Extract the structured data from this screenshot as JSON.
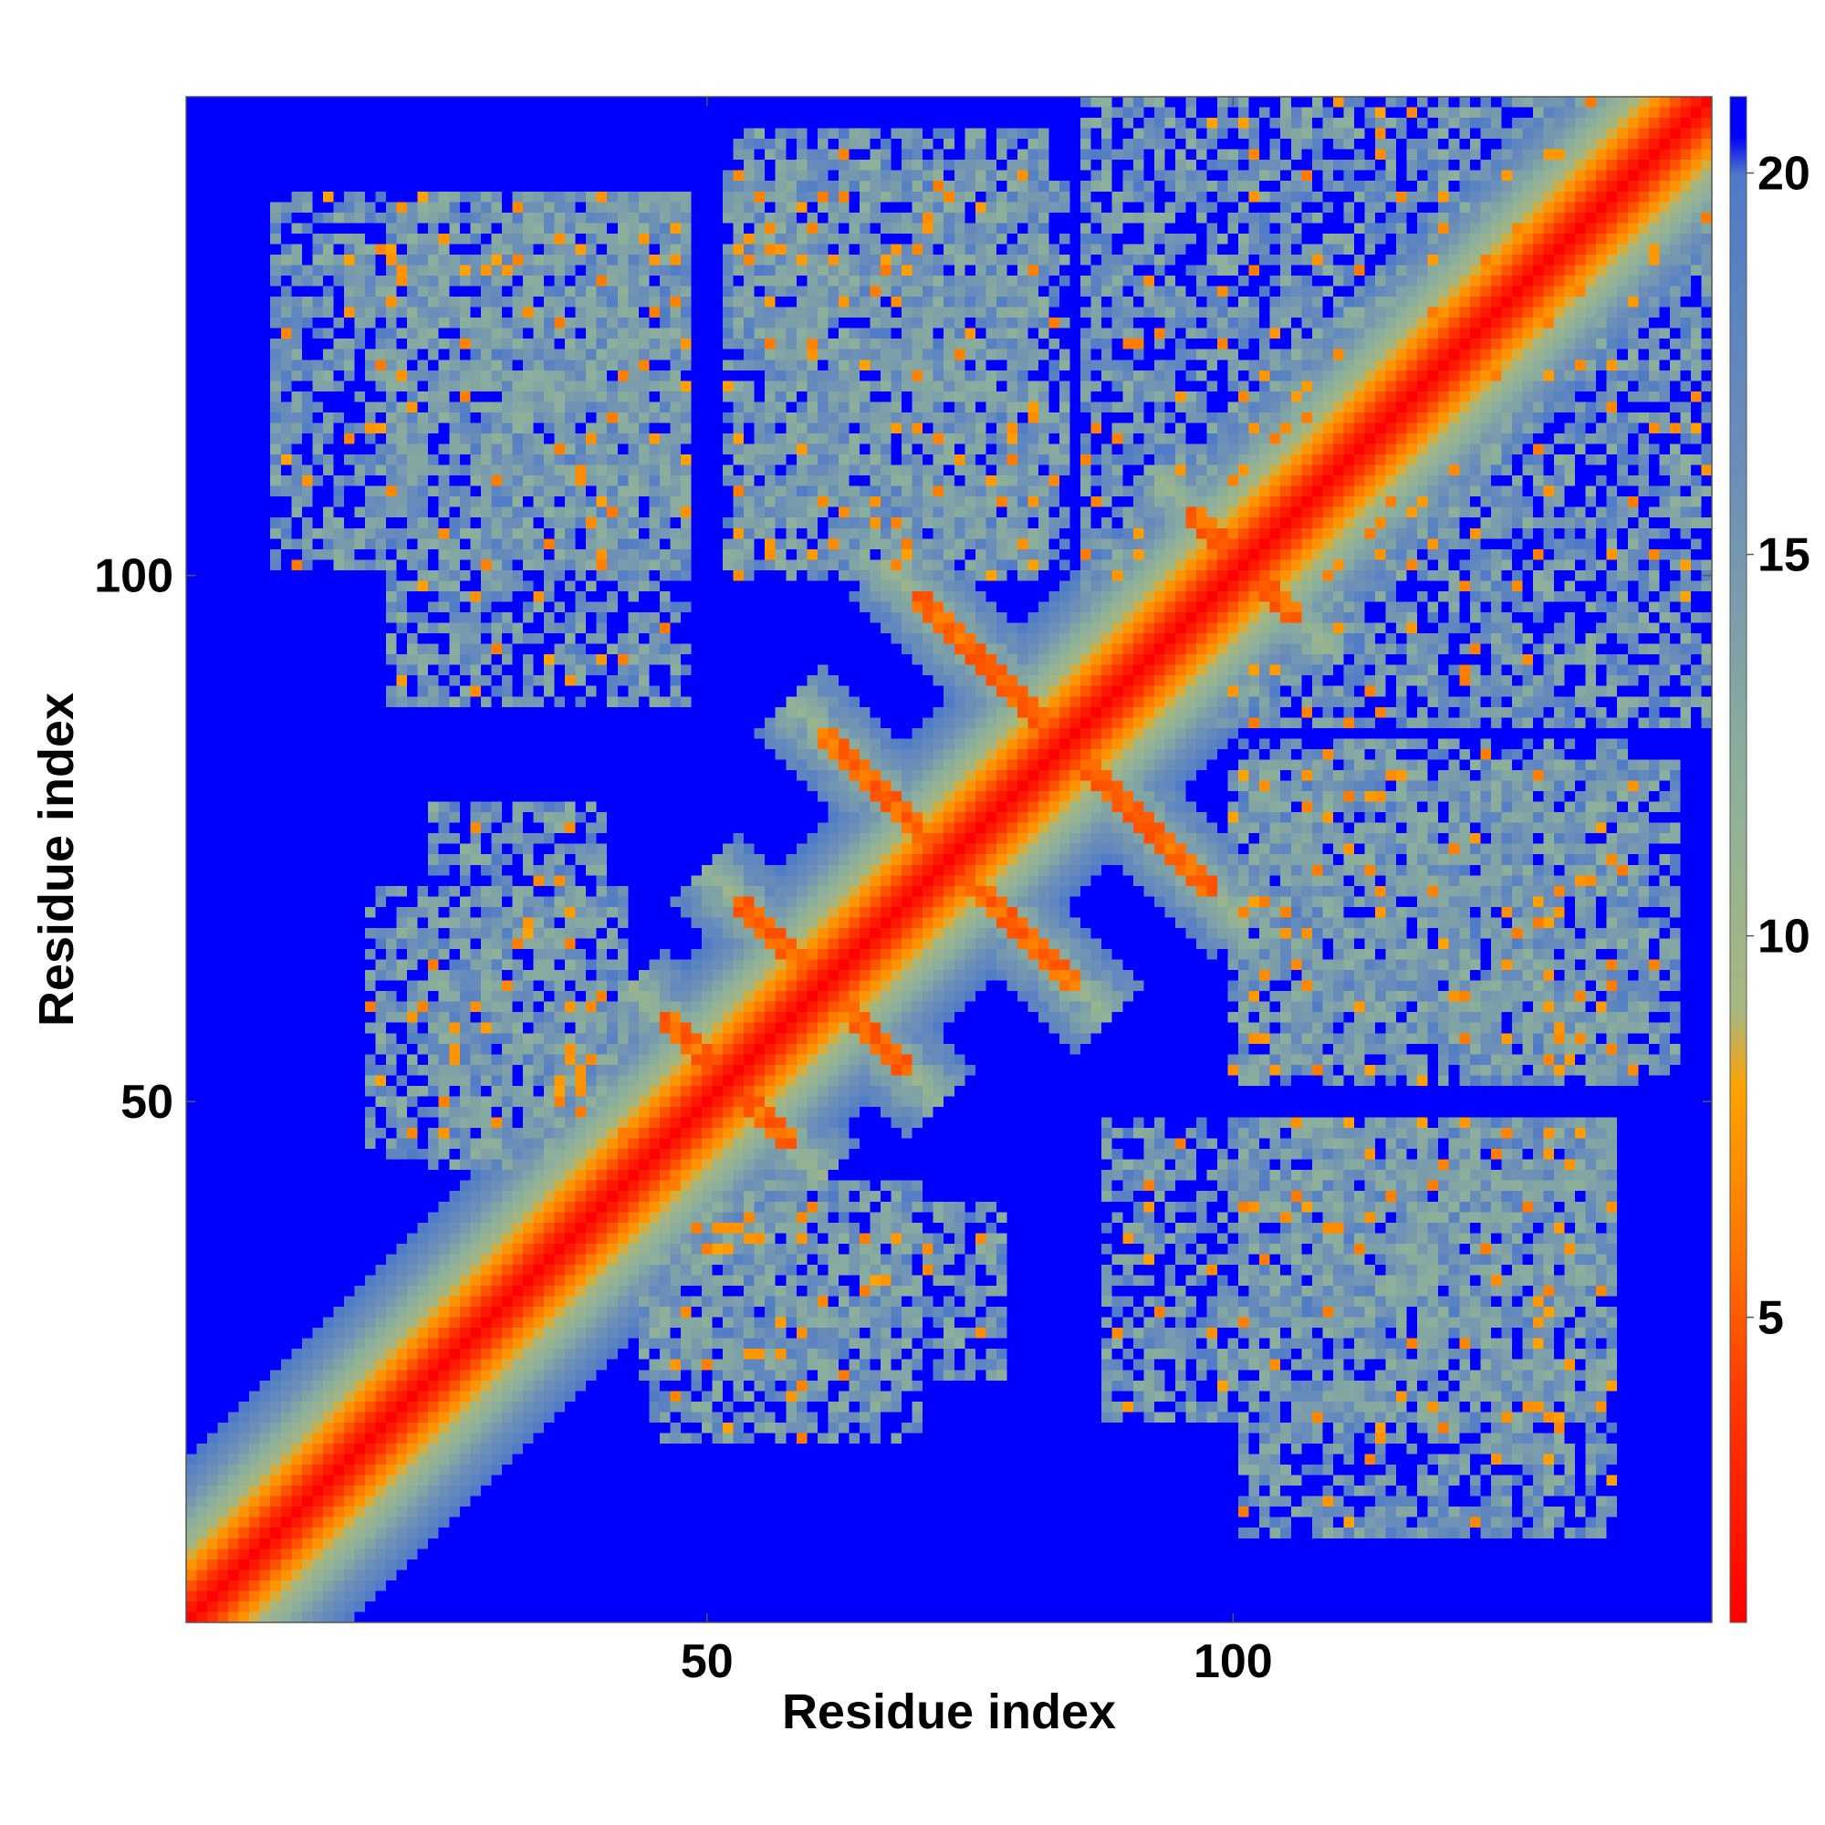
{
  "chart_data": {
    "type": "heatmap",
    "title": "",
    "xlabel": "Residue index",
    "ylabel": "Residue index",
    "n_residues": 145,
    "xlim": [
      1,
      145
    ],
    "ylim": [
      1,
      145
    ],
    "x_ticks": [
      {
        "value": 50,
        "label": "50"
      },
      {
        "value": 100,
        "label": "100"
      }
    ],
    "y_ticks": [
      {
        "value": 50,
        "label": "50"
      },
      {
        "value": 100,
        "label": "100"
      }
    ],
    "colorbar": {
      "range": [
        1,
        21
      ],
      "saturated_above": 20,
      "ticks": [
        {
          "value": 5,
          "label": "5"
        },
        {
          "value": 10,
          "label": "10"
        },
        {
          "value": 15,
          "label": "15"
        },
        {
          "value": 20,
          "label": "20"
        }
      ],
      "stops": [
        {
          "value": 1,
          "color": "#ff0000"
        },
        {
          "value": 4,
          "color": "#ff3b00"
        },
        {
          "value": 6,
          "color": "#ff7a00"
        },
        {
          "value": 8,
          "color": "#ffa300"
        },
        {
          "value": 9,
          "color": "#a8b77e"
        },
        {
          "value": 12,
          "color": "#8eb09a"
        },
        {
          "value": 16,
          "color": "#6c8fb8"
        },
        {
          "value": 20,
          "color": "#4f7bc8"
        },
        {
          "value": 20.5,
          "color": "#0000ff"
        }
      ]
    },
    "features": {
      "main_diagonal": {
        "from": 1,
        "to": 145,
        "distance_on_diagonal": 1
      },
      "anti_diagonal_strands": [
        {
          "center": [
            52,
            52
          ],
          "half_length": 6
        },
        {
          "center": [
            61,
            61
          ],
          "half_length": 8
        },
        {
          "center": [
            73,
            73
          ],
          "half_length": 12
        },
        {
          "center": [
            84,
            84
          ],
          "half_length": 14
        },
        {
          "center": [
            101,
            101
          ],
          "half_length": 5
        }
      ],
      "sparse_contact_regions": [
        {
          "x": [
            9,
            48
          ],
          "y": [
            101,
            136
          ]
        },
        {
          "x": [
            52,
            84
          ],
          "y": [
            101,
            138
          ]
        },
        {
          "x": [
            86,
            135
          ],
          "y": [
            96,
            145
          ]
        },
        {
          "x": [
            18,
            42
          ],
          "y": [
            45,
            70
          ]
        },
        {
          "x": [
            100,
            142
          ],
          "y": [
            53,
            82
          ]
        },
        {
          "x": [
            44,
            78
          ],
          "y": [
            24,
            40
          ]
        },
        {
          "x": [
            88,
            136
          ],
          "y": [
            20,
            48
          ]
        }
      ]
    }
  }
}
